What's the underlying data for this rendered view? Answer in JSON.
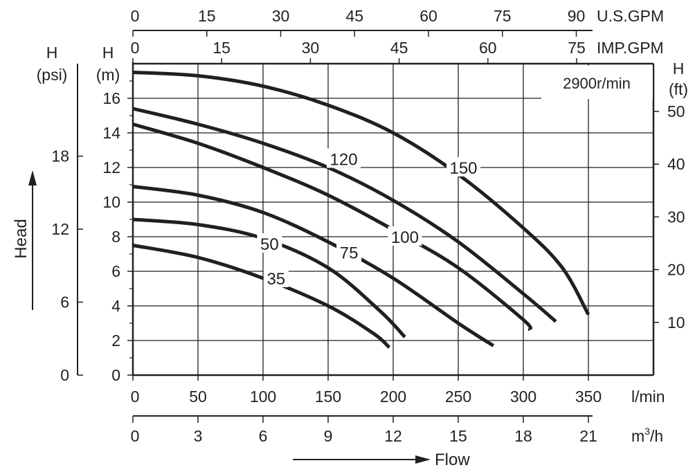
{
  "chart_data": {
    "type": "line",
    "annotation": "2900r/min",
    "x_axis": {
      "unit": "l/min",
      "ticks": [
        "0",
        "50",
        "100",
        "150",
        "200",
        "250",
        "300",
        "350"
      ],
      "xlim": [
        0,
        400
      ]
    },
    "x_axis_m3h": {
      "unit": "m³/h",
      "unit_base": "m",
      "unit_sup": "3",
      "unit_tail": "/h",
      "ticks": [
        "0",
        "3",
        "6",
        "9",
        "12",
        "15",
        "18",
        "21"
      ]
    },
    "top_axis_usgpm": {
      "unit": "U.S.GPM",
      "ticks": [
        "0",
        "15",
        "30",
        "45",
        "60",
        "75",
        "90"
      ]
    },
    "top_axis_impgpm": {
      "unit": "IMP.GPM",
      "ticks": [
        "0",
        "15",
        "30",
        "45",
        "60",
        "75"
      ]
    },
    "y_axis_m": {
      "label_line1": "H",
      "label_line2": "(m)",
      "ticks": [
        "0",
        "2",
        "4",
        "6",
        "8",
        "10",
        "12",
        "14",
        "16"
      ],
      "ylim": [
        0,
        18
      ]
    },
    "y_axis_psi": {
      "label_line1": "H",
      "label_line2": "(psi)",
      "ticks": [
        "0",
        "6",
        "12",
        "18"
      ]
    },
    "y_axis_ft": {
      "label_line1": "H",
      "label_line2": "(ft)",
      "ticks": [
        "10",
        "20",
        "30",
        "40",
        "50"
      ]
    },
    "head_label": "Head",
    "flow_label": "Flow",
    "grid": true,
    "series": [
      {
        "name": "35",
        "points": [
          [
            0,
            7.5
          ],
          [
            50,
            6.8
          ],
          [
            100,
            5.6
          ],
          [
            150,
            4.0
          ],
          [
            185,
            2.4
          ],
          [
            197,
            1.6
          ]
        ],
        "label_at": [
          110,
          5.6
        ]
      },
      {
        "name": "50",
        "points": [
          [
            0,
            9.0
          ],
          [
            50,
            8.7
          ],
          [
            100,
            7.9
          ],
          [
            150,
            6.2
          ],
          [
            190,
            3.7
          ],
          [
            209,
            2.2
          ]
        ],
        "label_at": [
          105,
          7.6
        ]
      },
      {
        "name": "75",
        "points": [
          [
            0,
            10.9
          ],
          [
            50,
            10.4
          ],
          [
            100,
            9.4
          ],
          [
            150,
            7.7
          ],
          [
            200,
            5.6
          ],
          [
            250,
            3.0
          ],
          [
            277,
            1.7
          ]
        ],
        "label_at": [
          166,
          7.1
        ]
      },
      {
        "name": "100",
        "points": [
          [
            0,
            14.5
          ],
          [
            50,
            13.4
          ],
          [
            100,
            12.0
          ],
          [
            150,
            10.4
          ],
          [
            200,
            8.4
          ],
          [
            250,
            6.2
          ],
          [
            300,
            3.2
          ],
          [
            305,
            2.6
          ]
        ],
        "label_at": [
          209,
          8.0
        ]
      },
      {
        "name": "120",
        "points": [
          [
            0,
            15.4
          ],
          [
            50,
            14.5
          ],
          [
            100,
            13.4
          ],
          [
            150,
            12.0
          ],
          [
            200,
            10.1
          ],
          [
            250,
            7.7
          ],
          [
            300,
            4.7
          ],
          [
            325,
            3.1
          ]
        ],
        "label_at": [
          162,
          12.5
        ]
      },
      {
        "name": "150",
        "points": [
          [
            0,
            17.5
          ],
          [
            50,
            17.3
          ],
          [
            100,
            16.7
          ],
          [
            150,
            15.6
          ],
          [
            200,
            14.0
          ],
          [
            250,
            11.6
          ],
          [
            300,
            8.5
          ],
          [
            330,
            6.2
          ],
          [
            350,
            3.5
          ]
        ],
        "label_at": [
          254,
          12.0
        ]
      }
    ]
  }
}
